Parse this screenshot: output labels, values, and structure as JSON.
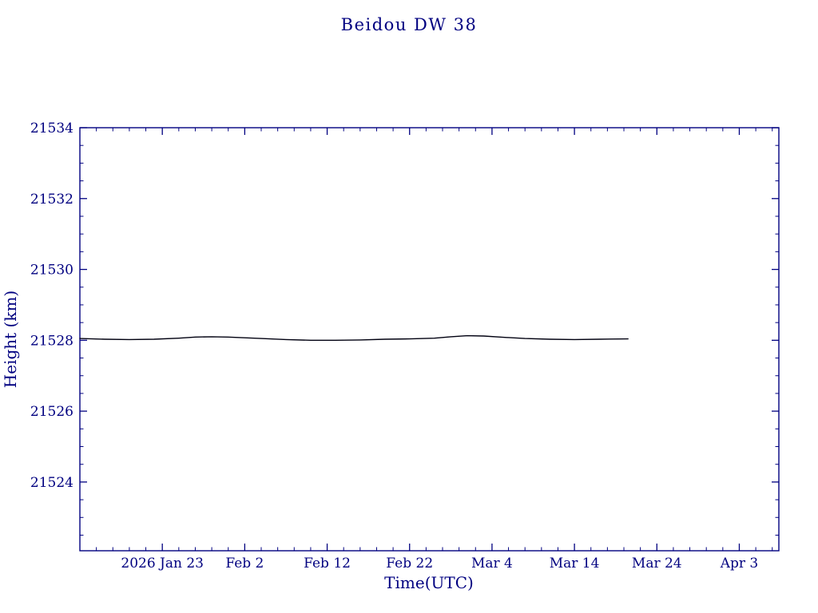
{
  "title": "Beidou DW 38",
  "chart_data": {
    "type": "line",
    "title": "Beidou DW 38",
    "xlabel": "Time(UTC)",
    "ylabel": "Height (km)",
    "axis_color": "#000080",
    "line_color": "#000010",
    "grid": false,
    "legend": "none",
    "x_tick_labels": [
      "2026 Jan 23",
      "Feb 2",
      "Feb 12",
      "Feb 22",
      "Mar 4",
      "Mar 14",
      "Mar 24",
      "Apr 3"
    ],
    "x_tick_days": [
      10,
      20,
      30,
      40,
      50,
      60,
      70,
      80
    ],
    "x_minor_step_days": 2,
    "xlim_days": [
      0,
      84.8
    ],
    "y_ticks": [
      21524,
      21526,
      21528,
      21530,
      21532,
      21534
    ],
    "y_minor_step": 0.5,
    "ylim": [
      21522.06,
      21534
    ],
    "series": [
      {
        "name": "height",
        "x": [
          0,
          3,
          6,
          9,
          12,
          14,
          16,
          18,
          20,
          22,
          25,
          28,
          31,
          34,
          37,
          40,
          43,
          45,
          47,
          49,
          51,
          54,
          57,
          60,
          63,
          66.5
        ],
        "y": [
          21528.05,
          21528.03,
          21528.02,
          21528.03,
          21528.06,
          21528.09,
          21528.1,
          21528.09,
          21528.07,
          21528.05,
          21528.02,
          21528.0,
          21528.0,
          21528.01,
          21528.03,
          21528.04,
          21528.06,
          21528.1,
          21528.13,
          21528.12,
          21528.09,
          21528.05,
          21528.03,
          21528.02,
          21528.03,
          21528.04
        ]
      }
    ]
  }
}
